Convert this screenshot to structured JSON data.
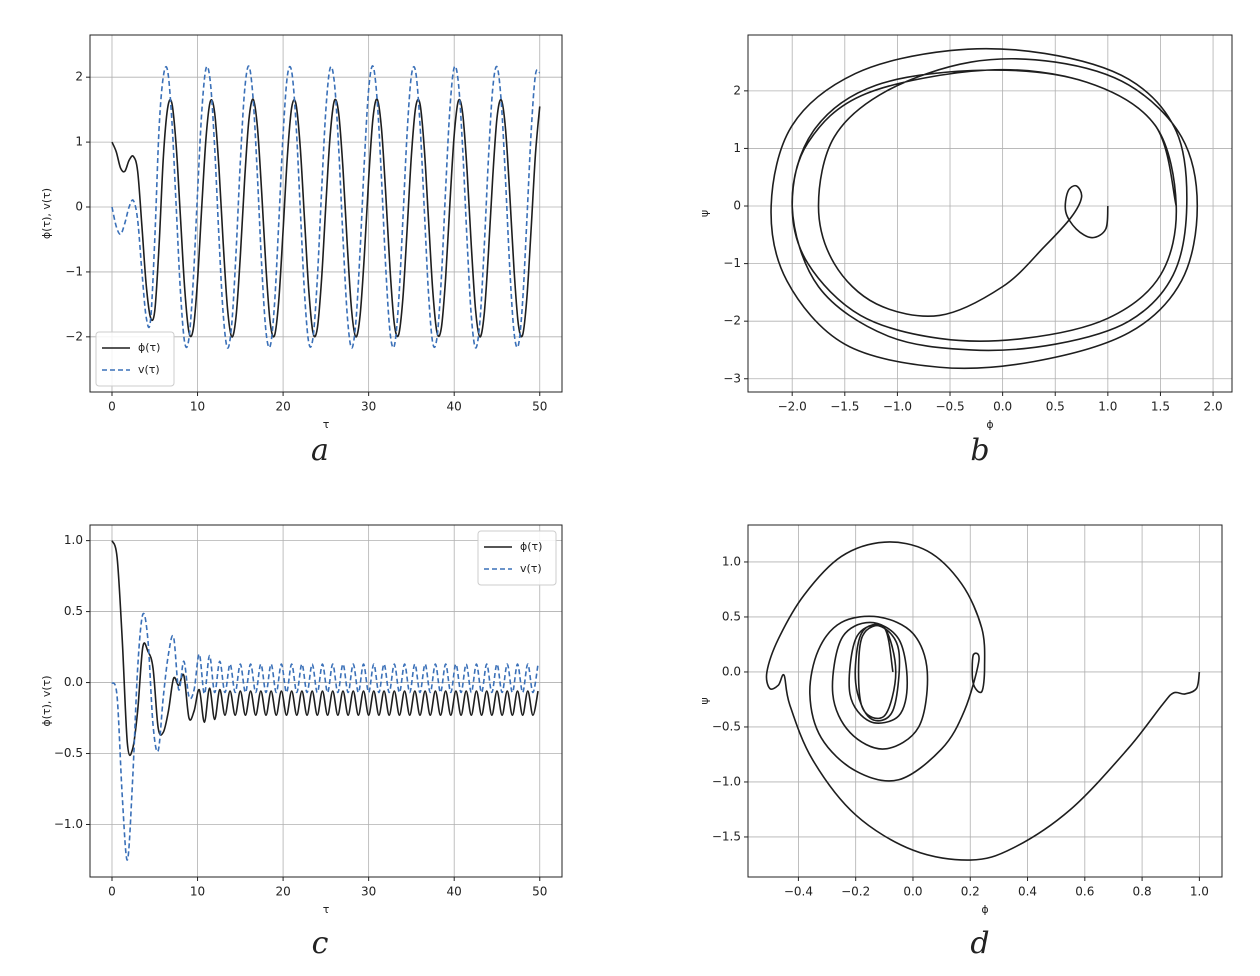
{
  "chart_data": [
    {
      "type": "line",
      "caption": "a",
      "xlabel": "τ",
      "ylabel": "ϕ(τ), v(τ)",
      "x": [
        0,
        0.5,
        1,
        1.5,
        2,
        2.5,
        3,
        3.5,
        4,
        4.5,
        5,
        5.5,
        6,
        6.5,
        7,
        7.5,
        8,
        8.5,
        9,
        9.5,
        10,
        10.5,
        11,
        11.5,
        12,
        12.5,
        13,
        13.5,
        14,
        14.5,
        15,
        15.5,
        16,
        16.5,
        17,
        17.5,
        18,
        18.5,
        19,
        19.5,
        20,
        20.5,
        21,
        21.5,
        22,
        22.5,
        23,
        23.5,
        24,
        24.5,
        25,
        25.5,
        26,
        26.5,
        27,
        27.5,
        28,
        28.5,
        29,
        29.5,
        30,
        30.5,
        31,
        31.5,
        32,
        32.5,
        33,
        33.5,
        34,
        34.5,
        35,
        35.5,
        36,
        36.5,
        37,
        37.5,
        38,
        38.5,
        39,
        39.5,
        40,
        40.5,
        41,
        41.5,
        42,
        42.5,
        43,
        43.5,
        44,
        44.5,
        45,
        45.5,
        46,
        46.5,
        47,
        47.5,
        48,
        48.5,
        49,
        49.5,
        50
      ],
      "series": [
        {
          "name": "ϕ(τ)",
          "color": "#1e1e1e",
          "linestyle": "solid",
          "values": [
            1.0,
            0.85,
            0.6,
            0.55,
            0.72,
            0.78,
            0.55,
            -0.3,
            -1.2,
            -1.7,
            -1.6,
            -0.6,
            0.76,
            1.52,
            1.6,
            0.95,
            -0.15,
            -1.26,
            -1.93,
            -1.88,
            -1.13,
            0.02,
            1.08,
            1.63,
            1.45,
            0.61,
            -0.56,
            -1.56,
            -2.0,
            -1.69,
            -0.76,
            0.41,
            1.34,
            1.66,
            1.23,
            0.22,
            -0.94,
            -1.79,
            -1.98,
            -1.43,
            -0.36,
            0.78,
            1.53,
            1.59,
            0.93,
            -0.18,
            -1.28,
            -1.94,
            -1.87,
            -1.11,
            0.04,
            1.1,
            1.64,
            1.44,
            0.59,
            -0.58,
            -1.58,
            -2.0,
            -1.67,
            -0.74,
            0.43,
            1.36,
            1.66,
            1.21,
            0.2,
            -0.96,
            -1.8,
            -1.97,
            -1.41,
            -0.34,
            0.8,
            1.54,
            1.59,
            0.91,
            -0.2,
            -1.3,
            -1.94,
            -1.86,
            -1.09,
            0.06,
            1.11,
            1.64,
            1.43,
            0.57,
            -0.6,
            -1.59,
            -2.0,
            -1.66,
            -0.71,
            0.45,
            1.37,
            1.65,
            1.2,
            0.18,
            -0.98,
            -1.81,
            -1.97,
            -1.39,
            -0.32,
            0.82,
            1.55
          ]
        },
        {
          "name": "v(τ)",
          "color": "#3a70b8",
          "linestyle": "dashed",
          "values": [
            0,
            -0.3,
            -0.42,
            -0.25,
            0,
            0.1,
            -0.2,
            -1.0,
            -1.7,
            -1.75,
            -0.5,
            1.2,
            2.01,
            2.1,
            1.33,
            0.02,
            -1.3,
            -2.09,
            -2.02,
            -1.13,
            0.22,
            1.48,
            2.14,
            1.92,
            0.92,
            -0.46,
            -1.65,
            -2.17,
            -1.8,
            -0.7,
            0.69,
            1.79,
            2.17,
            1.66,
            0.47,
            -0.91,
            -1.92,
            -2.14,
            -1.49,
            -0.23,
            1.12,
            2.02,
            2.09,
            1.31,
            -0.01,
            -1.32,
            -2.09,
            -2.01,
            -1.11,
            0.25,
            1.5,
            2.14,
            1.91,
            0.9,
            -0.48,
            -1.67,
            -2.17,
            -1.78,
            -0.67,
            0.71,
            1.81,
            2.17,
            1.64,
            0.44,
            -0.94,
            -1.93,
            -2.14,
            -1.47,
            -0.2,
            1.15,
            2.03,
            2.08,
            1.28,
            -0.03,
            -1.34,
            -2.1,
            -2.0,
            -1.09,
            0.28,
            1.52,
            2.15,
            1.9,
            0.87,
            -0.51,
            -1.68,
            -2.17,
            -1.77,
            -0.64,
            0.74,
            1.82,
            2.16,
            1.62,
            0.41,
            -0.96,
            -1.94,
            -2.13,
            -1.45,
            -0.18,
            1.17,
            2.04,
            2.07
          ]
        }
      ],
      "xlim": [
        -2.57,
        52.6
      ],
      "ylim": [
        -2.85,
        2.65
      ],
      "xticks": [
        0,
        10,
        20,
        30,
        40,
        50
      ],
      "yticks": [
        {
          "value": -2,
          "label": "−2"
        },
        {
          "value": -1,
          "label": "−1"
        },
        0,
        1,
        2
      ],
      "grid": true,
      "legend": "lower left"
    },
    {
      "type": "line",
      "caption": "b",
      "xlabel": "ϕ",
      "ylabel": "ψ",
      "x": [
        1,
        0.98,
        0.85,
        0.7,
        0.6,
        0.62,
        0.7,
        0.75,
        0.65,
        0.4,
        0,
        -0.6,
        -1.2,
        -1.6,
        -1.75,
        -1.6,
        -1.1,
        -0.3,
        0.5,
        1.2,
        1.7,
        1.85,
        1.7,
        1.2,
        0.3,
        -0.6,
        -1.5,
        -2.05,
        -2.2,
        -2.0,
        -1.4,
        -0.5,
        0.4,
        1.2,
        1.65,
        1.75,
        1.62,
        1.2,
        0.5,
        -0.3,
        -1.1,
        -1.75,
        -2.0,
        -1.8,
        -1.2,
        -0.15,
        0.8,
        1.45,
        1.65,
        1.5,
        1.0,
        0.2,
        -0.6,
        -1.35,
        -1.85,
        -2.0,
        -1.85,
        -1.3,
        -0.15,
        0.8,
        1.45,
        1.65
      ],
      "series": [
        {
          "color": "#1e1e1e",
          "linestyle": "solid",
          "values": [
            0,
            -0.4,
            -0.55,
            -0.4,
            -0.1,
            0.25,
            0.35,
            0.15,
            -0.2,
            -0.7,
            -1.4,
            -1.9,
            -1.7,
            -1.0,
            0,
            1.2,
            2.0,
            2.5,
            2.5,
            2.1,
            1.2,
            0,
            -1.3,
            -2.2,
            -2.7,
            -2.8,
            -2.4,
            -1.3,
            0,
            1.4,
            2.3,
            2.7,
            2.65,
            2.2,
            1.3,
            0,
            -1.2,
            -2.0,
            -2.4,
            -2.5,
            -2.25,
            -1.4,
            0,
            1.3,
            2.1,
            2.36,
            2.15,
            1.4,
            0,
            -1.2,
            -1.95,
            -2.3,
            -2.3,
            -1.9,
            -1.0,
            0,
            1.1,
            1.95,
            2.36,
            2.15,
            1.4,
            0
          ]
        }
      ],
      "xlim": [
        -2.42,
        2.18
      ],
      "ylim": [
        -3.23,
        2.97
      ],
      "xticks": [
        {
          "value": -2,
          "label": "−2.0"
        },
        {
          "value": -1.5,
          "label": "−1.5"
        },
        {
          "value": -1,
          "label": "−1.0"
        },
        {
          "value": -0.5,
          "label": "−0.5"
        },
        {
          "value": 0,
          "label": "0.0"
        },
        0.5,
        {
          "value": 1,
          "label": "1.0"
        },
        1.5,
        {
          "value": 2,
          "label": "2.0"
        }
      ],
      "yticks": [
        {
          "value": -3,
          "label": "−3"
        },
        {
          "value": -2,
          "label": "−2"
        },
        {
          "value": -1,
          "label": "−1"
        },
        0,
        1,
        2
      ],
      "grid": true
    },
    {
      "type": "line",
      "caption": "c",
      "xlabel": "τ",
      "ylabel": "ϕ(τ), v(τ)",
      "x": [
        0,
        0.6,
        1.2,
        1.8,
        2.4,
        3,
        3.6,
        4.2,
        4.8,
        5.4,
        6,
        6.6,
        7.2,
        7.8,
        8.4,
        9,
        9.6,
        10.2,
        10.8,
        11.4,
        12,
        12.6,
        13.2,
        13.8,
        14.4,
        15,
        15.6,
        16.2,
        16.8,
        17.4,
        18,
        18.6,
        19.2,
        19.8,
        20.4,
        21,
        21.6,
        22.2,
        22.8,
        23.4,
        24,
        24.6,
        25.2,
        25.8,
        26.4,
        27,
        27.6,
        28.2,
        28.8,
        29.4,
        30,
        30.6,
        31.2,
        31.8,
        32.4,
        33,
        33.6,
        34.2,
        34.8,
        35.4,
        36,
        36.6,
        37.2,
        37.8,
        38.4,
        39,
        39.6,
        40.2,
        40.8,
        41.4,
        42,
        42.6,
        43.2,
        43.8,
        44.4,
        45,
        45.6,
        46.2,
        46.8,
        47.4,
        48,
        48.6,
        49.2,
        49.8
      ],
      "series": [
        {
          "name": "ϕ(τ)",
          "color": "#1e1e1e",
          "linestyle": "solid",
          "values": [
            1.0,
            0.88,
            0.3,
            -0.43,
            -0.47,
            -0.2,
            0.25,
            0.22,
            0.1,
            -0.32,
            -0.35,
            -0.2,
            0.03,
            -0.02,
            0.05,
            -0.25,
            -0.2,
            -0.05,
            -0.28,
            -0.04,
            -0.26,
            -0.05,
            -0.23,
            -0.06,
            -0.23,
            -0.06,
            -0.23,
            -0.06,
            -0.23,
            -0.06,
            -0.23,
            -0.06,
            -0.23,
            -0.06,
            -0.23,
            -0.06,
            -0.23,
            -0.06,
            -0.23,
            -0.06,
            -0.23,
            -0.06,
            -0.23,
            -0.06,
            -0.23,
            -0.06,
            -0.23,
            -0.06,
            -0.23,
            -0.06,
            -0.23,
            -0.06,
            -0.23,
            -0.06,
            -0.23,
            -0.06,
            -0.23,
            -0.06,
            -0.23,
            -0.06,
            -0.23,
            -0.06,
            -0.23,
            -0.06,
            -0.23,
            -0.06,
            -0.23,
            -0.06,
            -0.23,
            -0.06,
            -0.23,
            -0.06,
            -0.23,
            -0.06,
            -0.23,
            -0.06,
            -0.23,
            -0.06,
            -0.23,
            -0.06,
            -0.23,
            -0.06,
            -0.23,
            -0.06
          ]
        },
        {
          "name": "v(τ)",
          "color": "#3a70b8",
          "linestyle": "dashed",
          "values": [
            0,
            -0.1,
            -0.8,
            -1.25,
            -0.7,
            0.1,
            0.48,
            0.3,
            -0.3,
            -0.48,
            -0.1,
            0.2,
            0.32,
            -0.05,
            0.15,
            -0.1,
            -0.05,
            0.2,
            -0.08,
            0.19,
            -0.07,
            0.15,
            -0.07,
            0.13,
            -0.07,
            0.13,
            -0.07,
            0.13,
            -0.07,
            0.13,
            -0.07,
            0.13,
            -0.07,
            0.13,
            -0.07,
            0.13,
            -0.07,
            0.13,
            -0.07,
            0.13,
            -0.07,
            0.13,
            -0.07,
            0.13,
            -0.07,
            0.13,
            -0.07,
            0.13,
            -0.07,
            0.13,
            -0.07,
            0.13,
            -0.07,
            0.13,
            -0.07,
            0.13,
            -0.07,
            0.13,
            -0.07,
            0.13,
            -0.07,
            0.13,
            -0.07,
            0.13,
            -0.07,
            0.13,
            -0.07,
            0.13,
            -0.07,
            0.13,
            -0.07,
            0.13,
            -0.07,
            0.13,
            -0.07,
            0.13,
            -0.07,
            0.13,
            -0.07,
            0.13,
            -0.07,
            0.13,
            -0.07,
            0.13
          ]
        }
      ],
      "xlim": [
        -2.57,
        52.6
      ],
      "ylim": [
        -1.37,
        1.11
      ],
      "xticks": [
        0,
        10,
        20,
        30,
        40,
        50
      ],
      "yticks": [
        {
          "value": -1,
          "label": "−1.0"
        },
        {
          "value": -0.5,
          "label": "−0.5"
        },
        {
          "value": 0,
          "label": "0.0"
        },
        0.5,
        {
          "value": 1,
          "label": "1.0"
        }
      ],
      "grid": true,
      "legend": "upper right"
    },
    {
      "type": "line",
      "caption": "d",
      "xlabel": "ϕ",
      "ylabel": "ψ",
      "x": [
        1,
        0.99,
        0.95,
        0.91,
        0.87,
        0.75,
        0.55,
        0.35,
        0.2,
        0,
        -0.2,
        -0.35,
        -0.43,
        -0.45,
        -0.47,
        -0.5,
        -0.51,
        -0.47,
        -0.38,
        -0.25,
        -0.1,
        0.05,
        0.17,
        0.24,
        0.25,
        0.24,
        0.21,
        0.21,
        0.23,
        0.18,
        0.1,
        -0.05,
        -0.2,
        -0.32,
        -0.36,
        -0.33,
        -0.25,
        -0.12,
        0,
        0.05,
        0.02,
        -0.1,
        -0.22,
        -0.28,
        -0.25,
        -0.15,
        -0.05,
        -0.02,
        -0.05,
        -0.15,
        -0.22,
        -0.2,
        -0.12,
        -0.05,
        -0.07,
        -0.15,
        -0.2,
        -0.18,
        -0.1,
        -0.06,
        -0.1,
        -0.18,
        -0.18,
        -0.1,
        -0.07
      ],
      "series": [
        {
          "color": "#1e1e1e",
          "linestyle": "solid",
          "values": [
            0,
            -0.15,
            -0.2,
            -0.19,
            -0.3,
            -0.7,
            -1.25,
            -1.6,
            -1.71,
            -1.62,
            -1.3,
            -0.8,
            -0.3,
            -0.03,
            -0.12,
            -0.15,
            0,
            0.3,
            0.7,
            1.05,
            1.18,
            1.1,
            0.8,
            0.4,
            0.05,
            -0.18,
            -0.1,
            0.15,
            0.1,
            -0.35,
            -0.7,
            -0.98,
            -0.9,
            -0.6,
            -0.2,
            0.2,
            0.45,
            0.5,
            0.35,
            0,
            -0.5,
            -0.7,
            -0.55,
            -0.2,
            0.3,
            0.45,
            0.3,
            -0.1,
            -0.4,
            -0.45,
            -0.2,
            0.3,
            0.42,
            0.2,
            -0.35,
            -0.42,
            -0.1,
            0.35,
            0.4,
            0,
            -0.4,
            -0.3,
            0.3,
            0.4,
            0
          ]
        }
      ],
      "xlim": [
        -0.576,
        1.079
      ],
      "ylim": [
        -1.864,
        1.336
      ],
      "xticks": [
        {
          "value": -0.4,
          "label": "−0.4"
        },
        {
          "value": -0.2,
          "label": "−0.2"
        },
        {
          "value": 0,
          "label": "0.0"
        },
        0.2,
        0.4,
        0.6,
        0.8,
        {
          "value": 1,
          "label": "1.0"
        }
      ],
      "yticks": [
        {
          "value": -1.5,
          "label": "−1.5"
        },
        {
          "value": -1,
          "label": "−1.0"
        },
        {
          "value": -0.5,
          "label": "−0.5"
        },
        {
          "value": 0,
          "label": "0.0"
        },
        0.5,
        {
          "value": 1,
          "label": "1.0"
        }
      ],
      "grid": true
    }
  ]
}
